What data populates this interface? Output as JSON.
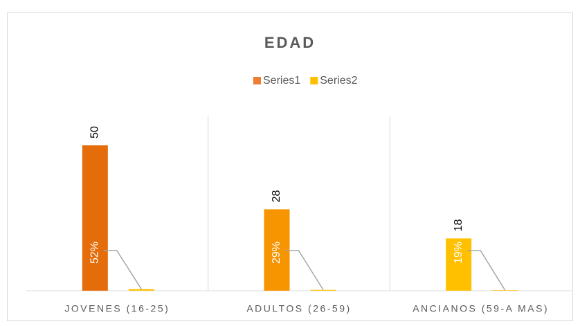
{
  "chart_data": {
    "type": "bar",
    "title": "EDAD",
    "categories": [
      "JOVENES (16-25)",
      "ADULTOS (26-59)",
      "ANCIANOS (59-A MAS)"
    ],
    "series": [
      {
        "name": "Series1",
        "color": "#ed7d31",
        "colors": [
          "#e46c0a",
          "#f79500",
          "#ffc000"
        ],
        "values": [
          50,
          28,
          18
        ]
      },
      {
        "name": "Series2",
        "color": "#ffc000",
        "values": [
          0.52,
          0.29,
          0.19
        ],
        "value_labels": [
          "52%",
          "29%",
          "19%"
        ]
      }
    ],
    "ylim": [
      0,
      60
    ],
    "legend": "top",
    "grid": false
  }
}
